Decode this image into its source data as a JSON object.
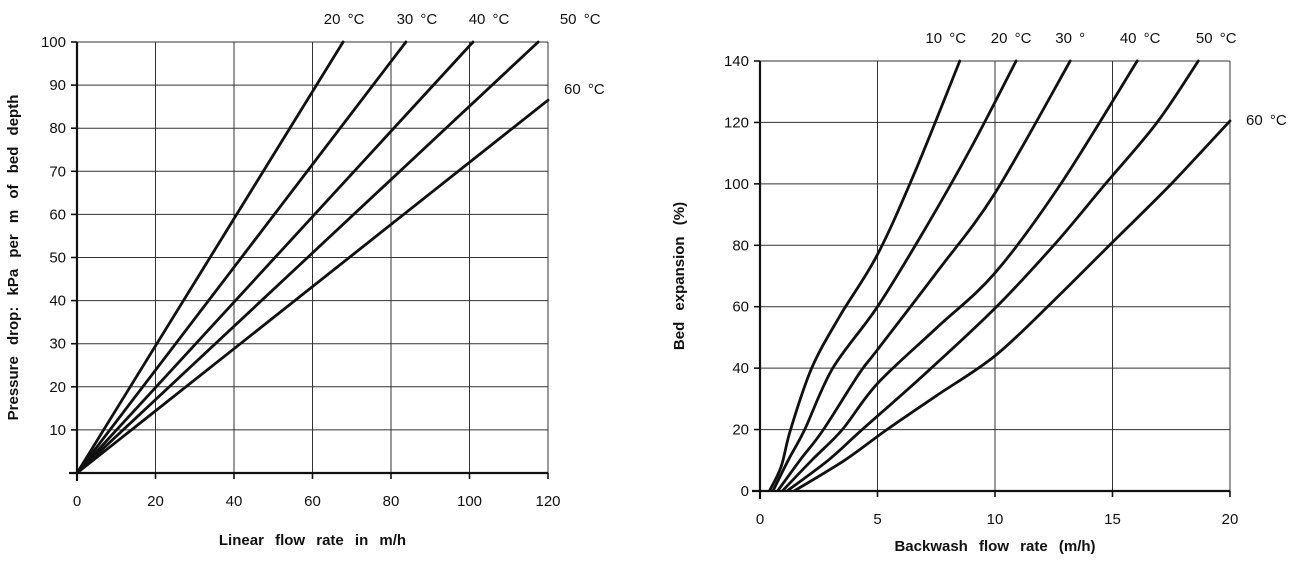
{
  "colors": {
    "background": "#ffffff",
    "ink": "#111111",
    "grid": "#333333"
  },
  "chart_data": [
    {
      "id": "pressure_drop",
      "type": "line",
      "title": "",
      "xlabel": "Linear flow rate in m/h",
      "ylabel": "Pressure drop: kPa per m of bed depth",
      "xlim": [
        0,
        120
      ],
      "ylim": [
        0,
        100
      ],
      "xticks": [
        0,
        20,
        40,
        60,
        80,
        100,
        120
      ],
      "yticks": [
        10,
        20,
        30,
        40,
        50,
        60,
        70,
        80,
        90,
        100
      ],
      "grid": true,
      "legend_position": "labels-at-curve-ends",
      "series": [
        {
          "name": "20 °C",
          "label_side": "top",
          "label_dx": 1,
          "label_dy": 0,
          "points": [
            [
              0,
              0
            ],
            [
              67.8,
              100
            ]
          ]
        },
        {
          "name": "30 °C",
          "label_side": "top",
          "label_dx": 11,
          "label_dy": 0,
          "points": [
            [
              0,
              0
            ],
            [
              83.8,
              100
            ]
          ]
        },
        {
          "name": "40 °C",
          "label_side": "top",
          "label_dx": 16,
          "label_dy": 0,
          "points": [
            [
              0,
              0
            ],
            [
              100.9,
              100
            ]
          ]
        },
        {
          "name": "50 °C",
          "label_side": "top",
          "label_dx": 42,
          "label_dy": 0,
          "points": [
            [
              0,
              0
            ],
            [
              117.5,
              100
            ]
          ]
        },
        {
          "name": "60 °C",
          "label_side": "right",
          "label_dx": 0,
          "label_dy": -6,
          "points": [
            [
              0,
              0
            ],
            [
              120,
              86.5
            ]
          ]
        }
      ]
    },
    {
      "id": "bed_expansion",
      "type": "line",
      "title": "",
      "xlabel": "Backwash flow rate (m/h)",
      "ylabel": "Bed expansion (%)",
      "xlim": [
        0,
        20
      ],
      "ylim": [
        0,
        140
      ],
      "xticks": [
        0,
        5,
        10,
        15,
        20
      ],
      "yticks": [
        0,
        20,
        40,
        60,
        80,
        100,
        120,
        140
      ],
      "grid": true,
      "legend_position": "labels-at-curve-ends",
      "series": [
        {
          "name": "10 °C",
          "label_side": "top",
          "label_dx": -14,
          "label_dy": 0,
          "points": [
            [
              0.4,
              0
            ],
            [
              0.9,
              8
            ],
            [
              1.3,
              20
            ],
            [
              2.2,
              40
            ],
            [
              3.4,
              57
            ],
            [
              5,
              77
            ],
            [
              6.6,
              104
            ],
            [
              8.5,
              140
            ]
          ]
        },
        {
          "name": "20 °C",
          "label_side": "top",
          "label_dx": -5,
          "label_dy": 0,
          "points": [
            [
              0.55,
              0
            ],
            [
              1.2,
              10
            ],
            [
              1.9,
              20
            ],
            [
              3.1,
              40
            ],
            [
              5,
              60
            ],
            [
              7,
              85
            ],
            [
              9,
              112
            ],
            [
              10.9,
              140
            ]
          ]
        },
        {
          "name": "30 °",
          "label_side": "top",
          "label_dx": 0,
          "label_dy": 0,
          "points": [
            [
              0.75,
              0
            ],
            [
              1.7,
              10
            ],
            [
              2.7,
              20
            ],
            [
              4.2,
              38
            ],
            [
              5,
              46
            ],
            [
              7.5,
              71
            ],
            [
              10,
              97
            ],
            [
              13.2,
              140
            ]
          ]
        },
        {
          "name": "40 °C",
          "label_side": "top",
          "label_dx": 3,
          "label_dy": 0,
          "points": [
            [
              0.95,
              0
            ],
            [
              2.2,
              10
            ],
            [
              3.5,
              20
            ],
            [
              5,
              35
            ],
            [
              7.5,
              53
            ],
            [
              10,
              71
            ],
            [
              12.8,
              100
            ],
            [
              16.05,
              140
            ]
          ]
        },
        {
          "name": "50 °C",
          "label_side": "top",
          "label_dx": 18,
          "label_dy": 0,
          "points": [
            [
              1.15,
              0
            ],
            [
              2.9,
              10
            ],
            [
              4.35,
              20
            ],
            [
              7,
              38
            ],
            [
              10,
              59.5
            ],
            [
              12.5,
              80
            ],
            [
              14.7,
              100
            ],
            [
              16.9,
              120
            ],
            [
              18.65,
              140
            ]
          ]
        },
        {
          "name": "60 °C",
          "label_side": "right",
          "label_dx": 0,
          "label_dy": 4,
          "points": [
            [
              1.45,
              0
            ],
            [
              3.6,
              10
            ],
            [
              5.4,
              20
            ],
            [
              7.5,
              31
            ],
            [
              10,
              44
            ],
            [
              12.5,
              62
            ],
            [
              15,
              81
            ],
            [
              17.5,
              100
            ],
            [
              20,
              120.5
            ]
          ]
        }
      ]
    }
  ]
}
